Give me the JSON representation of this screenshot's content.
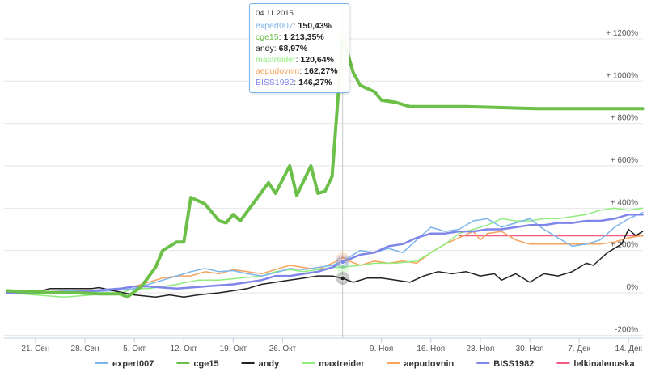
{
  "chart_data": {
    "type": "line",
    "title": "",
    "xlabel": "",
    "ylabel": "",
    "x_tick_labels": [
      "21. Сен",
      "28. Сен",
      "5. Окт",
      "12. Окт",
      "19. Окт",
      "26. Окт",
      "9. Ноя",
      "16. Ноя",
      "23. Ноя",
      "30. Ноя",
      "7. Дек",
      "14. Дек"
    ],
    "x_tick_days": [
      4,
      11,
      18,
      25,
      32,
      39,
      53,
      60,
      67,
      74,
      81,
      88
    ],
    "y_tick_labels": [
      "+ 1200%",
      "+ 1000%",
      "+ 800%",
      "+ 600%",
      "+ 400%",
      "+ 200%",
      "0%",
      "-200%"
    ],
    "y_tick_values": [
      1200,
      1000,
      800,
      600,
      400,
      200,
      0,
      -200
    ],
    "ylim": [
      -200,
      1250
    ],
    "grid": true,
    "legend_position": "bottom",
    "crosshair_day": 47.5,
    "series": [
      {
        "name": "expert007",
        "color": "#7cb5ec",
        "width": 1.5,
        "points": [
          [
            0,
            -5
          ],
          [
            3,
            0
          ],
          [
            6,
            5
          ],
          [
            9,
            10
          ],
          [
            12,
            5
          ],
          [
            15,
            10
          ],
          [
            18,
            20
          ],
          [
            20,
            40
          ],
          [
            22,
            60
          ],
          [
            24,
            80
          ],
          [
            26,
            100
          ],
          [
            28,
            115
          ],
          [
            30,
            100
          ],
          [
            32,
            105
          ],
          [
            34,
            90
          ],
          [
            36,
            80
          ],
          [
            38,
            95
          ],
          [
            40,
            115
          ],
          [
            42,
            110
          ],
          [
            44,
            120
          ],
          [
            46,
            130
          ],
          [
            47.5,
            150
          ],
          [
            50,
            200
          ],
          [
            52,
            190
          ],
          [
            54,
            210
          ],
          [
            56,
            190
          ],
          [
            58,
            250
          ],
          [
            60,
            310
          ],
          [
            62,
            290
          ],
          [
            64,
            300
          ],
          [
            66,
            340
          ],
          [
            68,
            350
          ],
          [
            70,
            310
          ],
          [
            72,
            330
          ],
          [
            74,
            350
          ],
          [
            76,
            300
          ],
          [
            78,
            260
          ],
          [
            80,
            220
          ],
          [
            82,
            230
          ],
          [
            84,
            250
          ],
          [
            86,
            310
          ],
          [
            88,
            350
          ],
          [
            90,
            380
          ]
        ]
      },
      {
        "name": "cge15",
        "color": "#6cc04a",
        "width": 4,
        "points": [
          [
            0,
            10
          ],
          [
            2,
            5
          ],
          [
            4,
            5
          ],
          [
            7,
            0
          ],
          [
            10,
            0
          ],
          [
            13,
            -5
          ],
          [
            16,
            -5
          ],
          [
            17,
            -20
          ],
          [
            19,
            30
          ],
          [
            21,
            120
          ],
          [
            22,
            200
          ],
          [
            24,
            240
          ],
          [
            25,
            240
          ],
          [
            26,
            450
          ],
          [
            28,
            420
          ],
          [
            30,
            340
          ],
          [
            31,
            330
          ],
          [
            32,
            370
          ],
          [
            33,
            340
          ],
          [
            35,
            430
          ],
          [
            37,
            520
          ],
          [
            38,
            470
          ],
          [
            40,
            600
          ],
          [
            41,
            460
          ],
          [
            43,
            600
          ],
          [
            44,
            470
          ],
          [
            45,
            480
          ],
          [
            46,
            550
          ],
          [
            47.5,
            1213
          ],
          [
            49,
            1040
          ],
          [
            50,
            980
          ],
          [
            52,
            950
          ],
          [
            53,
            910
          ],
          [
            55,
            900
          ],
          [
            57,
            880
          ],
          [
            60,
            880
          ],
          [
            65,
            880
          ],
          [
            70,
            875
          ],
          [
            75,
            870
          ],
          [
            80,
            870
          ],
          [
            85,
            870
          ],
          [
            90,
            870
          ]
        ]
      },
      {
        "name": "andy",
        "color": "#222222",
        "width": 1.5,
        "points": [
          [
            3,
            -5
          ],
          [
            6,
            20
          ],
          [
            9,
            20
          ],
          [
            12,
            20
          ],
          [
            13,
            25
          ],
          [
            15,
            10
          ],
          [
            18,
            -10
          ],
          [
            21,
            -20
          ],
          [
            23,
            -10
          ],
          [
            25,
            -20
          ],
          [
            27,
            -10
          ],
          [
            30,
            0
          ],
          [
            32,
            10
          ],
          [
            34,
            20
          ],
          [
            36,
            40
          ],
          [
            38,
            50
          ],
          [
            40,
            60
          ],
          [
            42,
            70
          ],
          [
            44,
            80
          ],
          [
            46,
            80
          ],
          [
            47.5,
            69
          ],
          [
            49,
            50
          ],
          [
            51,
            70
          ],
          [
            53,
            70
          ],
          [
            55,
            60
          ],
          [
            57,
            50
          ],
          [
            59,
            80
          ],
          [
            61,
            100
          ],
          [
            63,
            90
          ],
          [
            65,
            100
          ],
          [
            67,
            80
          ],
          [
            69,
            90
          ],
          [
            70,
            60
          ],
          [
            72,
            90
          ],
          [
            74,
            50
          ],
          [
            76,
            90
          ],
          [
            78,
            80
          ],
          [
            80,
            100
          ],
          [
            82,
            140
          ],
          [
            83,
            130
          ],
          [
            85,
            190
          ],
          [
            87,
            230
          ],
          [
            88,
            300
          ],
          [
            89,
            270
          ],
          [
            90,
            290
          ]
        ]
      },
      {
        "name": "maxtreider",
        "color": "#90ed7d",
        "width": 1.5,
        "points": [
          [
            0,
            0
          ],
          [
            4,
            -10
          ],
          [
            8,
            -20
          ],
          [
            12,
            -10
          ],
          [
            16,
            0
          ],
          [
            18,
            20
          ],
          [
            20,
            20
          ],
          [
            22,
            30
          ],
          [
            24,
            40
          ],
          [
            27,
            60
          ],
          [
            30,
            60
          ],
          [
            33,
            70
          ],
          [
            36,
            80
          ],
          [
            38,
            100
          ],
          [
            40,
            110
          ],
          [
            42,
            100
          ],
          [
            44,
            110
          ],
          [
            46,
            120
          ],
          [
            47.5,
            121
          ],
          [
            50,
            130
          ],
          [
            52,
            140
          ],
          [
            55,
            140
          ],
          [
            58,
            150
          ],
          [
            60,
            190
          ],
          [
            62,
            230
          ],
          [
            64,
            280
          ],
          [
            66,
            300
          ],
          [
            68,
            320
          ],
          [
            70,
            350
          ],
          [
            72,
            340
          ],
          [
            74,
            340
          ],
          [
            76,
            350
          ],
          [
            78,
            350
          ],
          [
            80,
            360
          ],
          [
            82,
            370
          ],
          [
            84,
            390
          ],
          [
            86,
            400
          ],
          [
            88,
            390
          ],
          [
            90,
            400
          ]
        ]
      },
      {
        "name": "aepudovnin",
        "color": "#f7a35c",
        "width": 1.5,
        "points": [
          [
            0,
            0
          ],
          [
            4,
            0
          ],
          [
            8,
            10
          ],
          [
            12,
            10
          ],
          [
            16,
            20
          ],
          [
            18,
            30
          ],
          [
            20,
            50
          ],
          [
            22,
            70
          ],
          [
            24,
            80
          ],
          [
            26,
            80
          ],
          [
            28,
            100
          ],
          [
            30,
            90
          ],
          [
            32,
            110
          ],
          [
            34,
            100
          ],
          [
            36,
            90
          ],
          [
            38,
            110
          ],
          [
            40,
            130
          ],
          [
            42,
            120
          ],
          [
            44,
            110
          ],
          [
            46,
            140
          ],
          [
            47.5,
            162
          ],
          [
            50,
            130
          ],
          [
            52,
            150
          ],
          [
            54,
            140
          ],
          [
            56,
            150
          ],
          [
            58,
            140
          ],
          [
            60,
            190
          ],
          [
            62,
            230
          ],
          [
            64,
            260
          ],
          [
            66,
            290
          ],
          [
            67,
            250
          ],
          [
            68,
            280
          ],
          [
            70,
            290
          ],
          [
            72,
            250
          ],
          [
            74,
            230
          ],
          [
            76,
            230
          ],
          [
            78,
            230
          ],
          [
            80,
            230
          ],
          [
            82,
            230
          ],
          [
            84,
            230
          ],
          [
            86,
            240
          ],
          [
            88,
            260
          ],
          [
            90,
            270
          ]
        ]
      },
      {
        "name": "BISS1982",
        "color": "#8085e9",
        "width": 2.5,
        "points": [
          [
            0,
            0
          ],
          [
            4,
            0
          ],
          [
            8,
            0
          ],
          [
            12,
            10
          ],
          [
            16,
            20
          ],
          [
            18,
            30
          ],
          [
            20,
            30
          ],
          [
            24,
            20
          ],
          [
            28,
            30
          ],
          [
            32,
            40
          ],
          [
            36,
            60
          ],
          [
            38,
            80
          ],
          [
            40,
            80
          ],
          [
            42,
            90
          ],
          [
            44,
            100
          ],
          [
            46,
            120
          ],
          [
            47.5,
            146
          ],
          [
            50,
            180
          ],
          [
            52,
            190
          ],
          [
            54,
            220
          ],
          [
            56,
            230
          ],
          [
            58,
            260
          ],
          [
            60,
            280
          ],
          [
            62,
            280
          ],
          [
            64,
            290
          ],
          [
            66,
            290
          ],
          [
            68,
            300
          ],
          [
            70,
            300
          ],
          [
            72,
            310
          ],
          [
            74,
            320
          ],
          [
            76,
            320
          ],
          [
            78,
            330
          ],
          [
            80,
            330
          ],
          [
            82,
            340
          ],
          [
            84,
            340
          ],
          [
            86,
            350
          ],
          [
            88,
            370
          ],
          [
            90,
            370
          ]
        ]
      },
      {
        "name": "lelkinalenuska",
        "color": "#f15c80",
        "width": 2,
        "points": [
          [
            64,
            270
          ],
          [
            70,
            270
          ],
          [
            76,
            270
          ],
          [
            82,
            270
          ],
          [
            88,
            270
          ],
          [
            90,
            270
          ]
        ]
      }
    ],
    "tooltip": {
      "date": "04.11.2015",
      "entries": [
        {
          "name": "expert007",
          "value": "150,43%",
          "color": "#7cb5ec"
        },
        {
          "name": "cge15",
          "value": "1 213,35%",
          "color": "#6cc04a"
        },
        {
          "name": "andy",
          "value": "68,97%",
          "color": "#222222"
        },
        {
          "name": "maxtreider",
          "value": "120,64%",
          "color": "#90ed7d"
        },
        {
          "name": "aepudovnin",
          "value": "162,27%",
          "color": "#f7a35c"
        },
        {
          "name": "BISS1982",
          "value": "146,27%",
          "color": "#8085e9"
        }
      ]
    }
  }
}
